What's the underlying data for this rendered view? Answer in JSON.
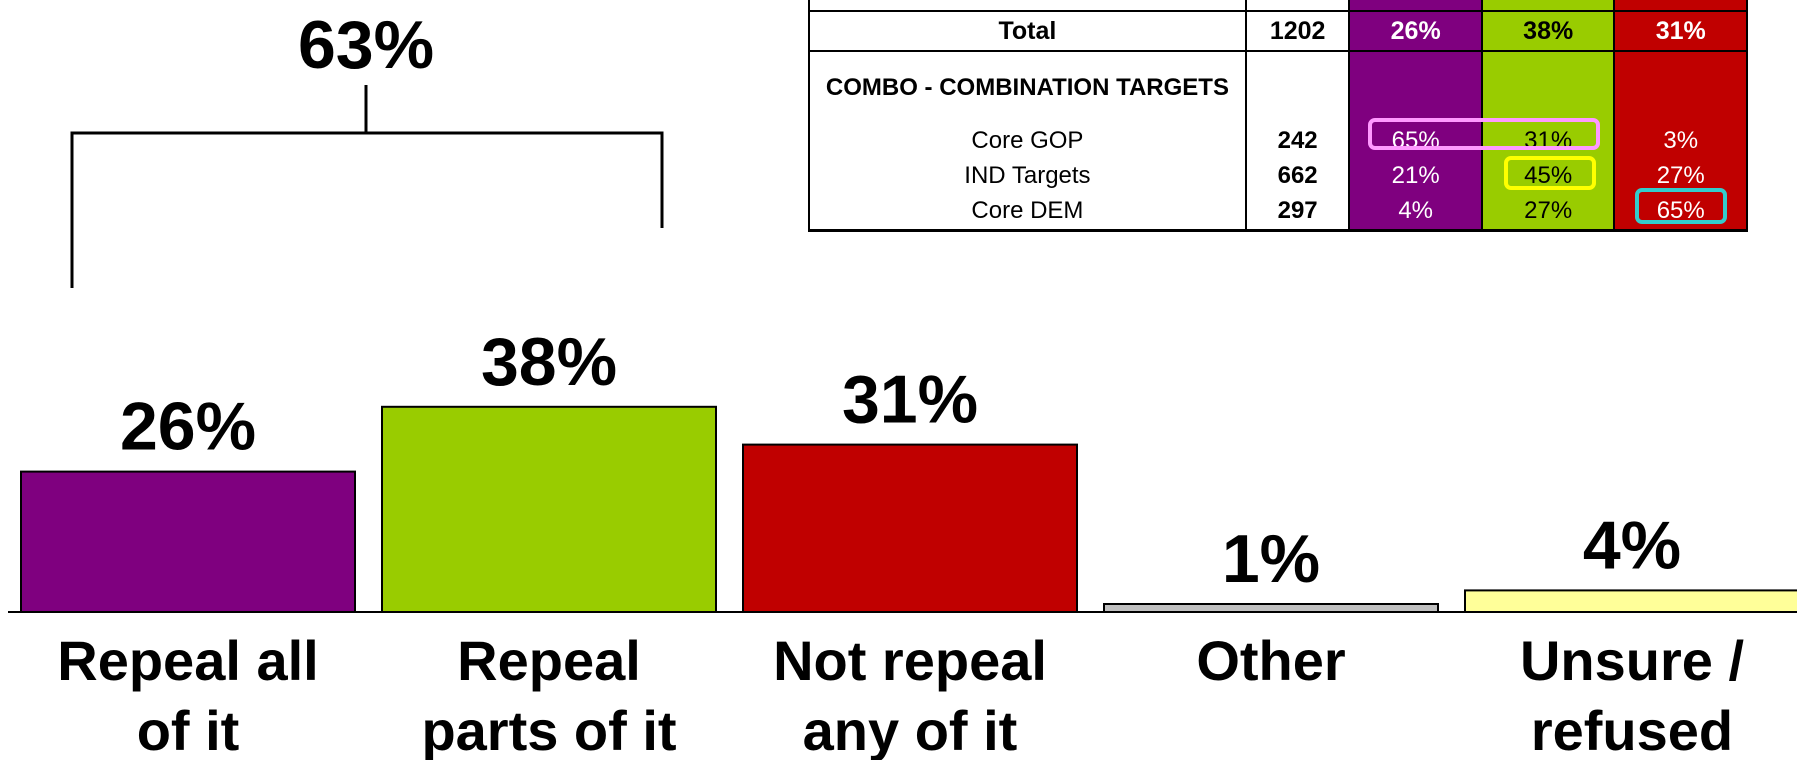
{
  "chart_data": {
    "type": "bar",
    "categories": [
      [
        "Repeal all",
        "of it"
      ],
      [
        "Repeal",
        "parts of it"
      ],
      [
        "Not repeal",
        "any of it"
      ],
      [
        "Other"
      ],
      [
        "Unsure /",
        "refused"
      ]
    ],
    "values": [
      26,
      38,
      31,
      1,
      4
    ],
    "value_labels": [
      "26%",
      "38%",
      "31%",
      "1%",
      "4%"
    ],
    "colors": [
      "#7f007f",
      "#99cc00",
      "#c00000",
      "#c0c0c0",
      "#ffff99"
    ],
    "ylim": [
      0,
      100
    ],
    "grid": false,
    "bracket": {
      "label": "63%",
      "spans_categories": [
        0,
        1
      ],
      "value": 63
    }
  },
  "crosstab": {
    "total_row": {
      "label": "Total",
      "n": "1202",
      "values": [
        "26%",
        "38%",
        "31%"
      ]
    },
    "section_title": "COMBO - COMBINATION TARGETS",
    "rows": [
      {
        "label": "Core GOP",
        "n": "242",
        "values": [
          "65%",
          "31%",
          "3%"
        ]
      },
      {
        "label": "IND Targets",
        "n": "662",
        "values": [
          "21%",
          "45%",
          "27%"
        ]
      },
      {
        "label": "Core DEM",
        "n": "297",
        "values": [
          "4%",
          "27%",
          "65%"
        ]
      }
    ],
    "column_colors": [
      "#7f007f",
      "#99cc00",
      "#c00000"
    ],
    "highlight_colors": {
      "pink": "#ff99ff",
      "yellow": "#ffff00",
      "cyan": "#33cccc"
    }
  }
}
